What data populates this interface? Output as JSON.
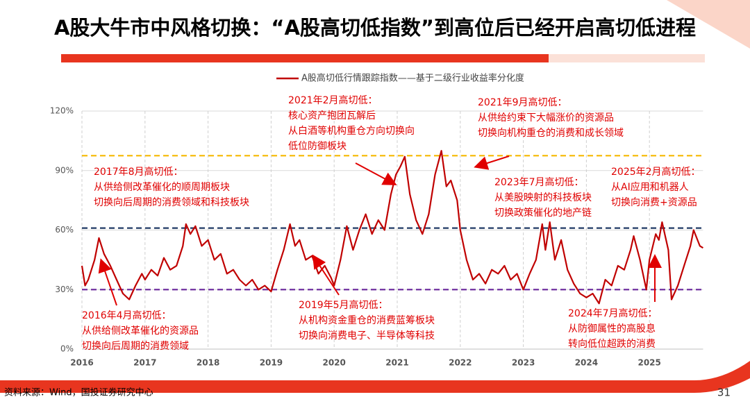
{
  "title": "A股大牛市中风格切换：“A股高切低指数”到高位后已经开启高切低进程",
  "source": "资料来源：Wind，国投证券研究中心",
  "page_number": "31",
  "chart_data": {
    "type": "line",
    "x": [
      2016.0,
      2016.05,
      2016.1,
      2016.2,
      2016.27,
      2016.35,
      2016.45,
      2016.55,
      2016.65,
      2016.75,
      2016.85,
      2016.95,
      2017.0,
      2017.1,
      2017.2,
      2017.3,
      2017.4,
      2017.5,
      2017.6,
      2017.65,
      2017.72,
      2017.8,
      2017.9,
      2018.0,
      2018.1,
      2018.2,
      2018.3,
      2018.4,
      2018.5,
      2018.6,
      2018.7,
      2018.8,
      2018.9,
      2019.0,
      2019.1,
      2019.2,
      2019.3,
      2019.38,
      2019.45,
      2019.55,
      2019.65,
      2019.75,
      2019.85,
      2019.95,
      2020.0,
      2020.1,
      2020.2,
      2020.3,
      2020.4,
      2020.5,
      2020.6,
      2020.7,
      2020.8,
      2020.9,
      2020.98,
      2021.05,
      2021.12,
      2021.2,
      2021.3,
      2021.4,
      2021.5,
      2021.6,
      2021.7,
      2021.78,
      2021.85,
      2021.95,
      2022.0,
      2022.1,
      2022.2,
      2022.3,
      2022.4,
      2022.5,
      2022.6,
      2022.7,
      2022.8,
      2022.9,
      2023.0,
      2023.1,
      2023.2,
      2023.3,
      2023.35,
      2023.42,
      2023.5,
      2023.6,
      2023.7,
      2023.8,
      2023.9,
      2024.0,
      2024.1,
      2024.2,
      2024.3,
      2024.4,
      2024.5,
      2024.6,
      2024.7,
      2024.75,
      2024.85,
      2024.95,
      2025.0,
      2025.1,
      2025.15,
      2025.2,
      2025.3,
      2025.35,
      2025.45,
      2025.55,
      2025.65,
      2025.7,
      2025.8,
      2025.85
    ],
    "series": [
      {
        "name": "A股高切低行情跟踪指数——基于二级行业收益率分化度",
        "color": "#c00000",
        "values": [
          42,
          32,
          35,
          45,
          56,
          48,
          42,
          35,
          28,
          25,
          32,
          38,
          35,
          40,
          37,
          46,
          40,
          42,
          52,
          63,
          58,
          62,
          52,
          55,
          45,
          48,
          38,
          40,
          35,
          32,
          35,
          30,
          32,
          29,
          40,
          50,
          63,
          52,
          55,
          45,
          47,
          38,
          42,
          36,
          32,
          45,
          62,
          50,
          60,
          68,
          58,
          65,
          60,
          78,
          88,
          92,
          97,
          78,
          65,
          58,
          68,
          88,
          100,
          82,
          85,
          75,
          60,
          45,
          35,
          38,
          33,
          40,
          38,
          42,
          35,
          38,
          30,
          38,
          45,
          63,
          50,
          64,
          45,
          55,
          40,
          33,
          28,
          26,
          28,
          23,
          35,
          32,
          42,
          40,
          50,
          57,
          45,
          30,
          45,
          58,
          55,
          64,
          50,
          25,
          32,
          42,
          52,
          60,
          52,
          51
        ]
      }
    ],
    "xlim": [
      2016,
      2025.85
    ],
    "xticks": [
      2016,
      2017,
      2018,
      2019,
      2020,
      2021,
      2022,
      2023,
      2024,
      2025
    ],
    "ylim": [
      0,
      120
    ],
    "yticks": [
      {
        "value": 0,
        "label": "0%"
      },
      {
        "value": 30,
        "label": "30%"
      },
      {
        "value": 60,
        "label": "60%"
      },
      {
        "value": 90,
        "label": "90%"
      },
      {
        "value": 120,
        "label": "120%"
      }
    ],
    "grid": true,
    "reference_lines": [
      {
        "value": 97.5,
        "color": "#f5b800"
      },
      {
        "value": 61,
        "color": "#1f3864"
      },
      {
        "value": 30,
        "color": "#7030a0"
      }
    ],
    "annotations": [
      {
        "lines": [
          "2017年8月高切低：",
          "从供给侧改革催化的顺周期板块",
          "切换向后周期的消费领域和科技板块"
        ]
      },
      {
        "lines": [
          "2016年4月高切低：",
          "从供给侧改革催化的资源品",
          "切换向后周期的消费领域"
        ]
      },
      {
        "lines": [
          "2021年2月高切低：",
          "核心资产抱团瓦解后",
          "从白酒等机构重仓方向切换向",
          "低位防御板块"
        ]
      },
      {
        "lines": [
          "2019年5月高切低：",
          "从机构资金重仓的消费蓝筹板块",
          "切换向消费电子、半导体等科技"
        ]
      },
      {
        "lines": [
          "2021年9月高切低：",
          "从供给约束下大幅涨价的资源品",
          "切换向机构重仓的消费和成长领域"
        ]
      },
      {
        "lines": [
          "2023年7月高切低：",
          "从美股映射的科技板块",
          "切换政策催化的地产链"
        ]
      },
      {
        "lines": [
          "2025年2月高切低：",
          "从AI应用和机器人",
          "切换向消费+资源品"
        ]
      },
      {
        "lines": [
          "2024年7月高切低：",
          "从防御属性的高股息",
          "转向低位超跌的消费"
        ]
      }
    ]
  }
}
